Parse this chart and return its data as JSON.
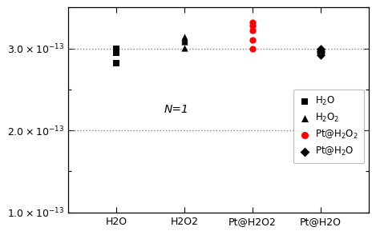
{
  "categories": [
    "H2O",
    "H2O2",
    "Pt@H2O2",
    "Pt@H2O"
  ],
  "x_positions": [
    1,
    2,
    3,
    4
  ],
  "h2o_data": [
    3e-13,
    2.95e-13,
    2.82e-13
  ],
  "h2o2_data": [
    3.14e-13,
    3.12e-13,
    3.1e-13,
    3.08e-13,
    3.01e-13
  ],
  "pth2o2_data": [
    3.32e-13,
    3.28e-13,
    3.22e-13,
    3.1e-13,
    3e-13
  ],
  "pth2o_data": [
    3e-13,
    2.99e-13,
    2.97e-13,
    2.96e-13,
    2.94e-13,
    2.92e-13
  ],
  "color_h2o": "#000000",
  "color_h2o2": "#000000",
  "color_pth2o2": "#ff0000",
  "color_pth2o": "#000000",
  "marker_h2o": "s",
  "marker_h2o2": "^",
  "marker_pth2o2": "o",
  "marker_pth2o": "D",
  "annotation": "N=1",
  "ylim_low": 1e-13,
  "ylim_high": 3.5e-13,
  "yticks": [
    1e-13,
    2e-13,
    3e-13
  ],
  "hlines": [
    3e-13,
    2e-13
  ],
  "legend_labels": [
    "H$_2$O",
    "H$_2$O$_2$",
    "Pt@H$_2$O$_2$",
    "Pt@H$_2$O"
  ],
  "background_color": "#ffffff"
}
